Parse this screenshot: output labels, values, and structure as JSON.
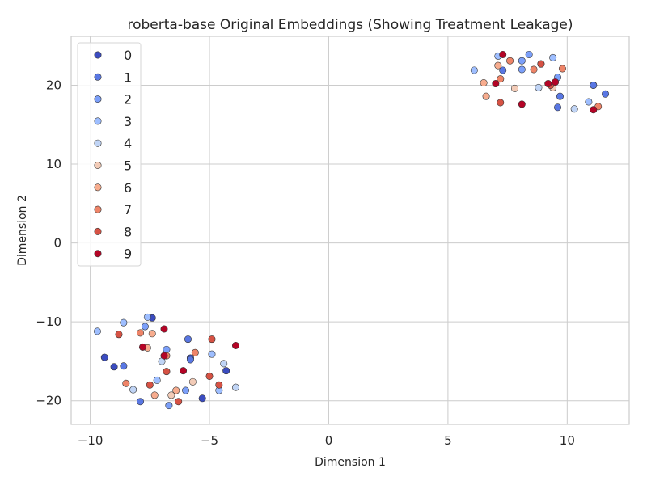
{
  "chart_data": {
    "type": "scatter",
    "title": "roberta-base Original Embeddings (Showing Treatment Leakage)",
    "xlabel": "Dimension 1",
    "ylabel": "Dimension 2",
    "xlim": [
      -10.8,
      12.6
    ],
    "ylim": [
      -23,
      26.2
    ],
    "xticks": [
      -10,
      -5,
      0,
      5,
      10
    ],
    "yticks": [
      -20,
      -10,
      0,
      10,
      20
    ],
    "xtick_labels": [
      "−10",
      "−5",
      "0",
      "5",
      "10"
    ],
    "ytick_labels": [
      "−20",
      "−10",
      "0",
      "10",
      "20"
    ],
    "grid": true,
    "legend_placement": "upper-left",
    "colors": [
      "#3b4cc0",
      "#5977e3",
      "#7b9ff9",
      "#9ebeff",
      "#c0d4f5",
      "#f2cbb7",
      "#f7ac8e",
      "#ee8468",
      "#d65244",
      "#b40426"
    ],
    "series": [
      {
        "name": "0",
        "points": [
          [
            -9.4,
            -14.5
          ],
          [
            -9.0,
            -15.7
          ],
          [
            -7.4,
            -9.5
          ],
          [
            -5.8,
            -14.6
          ],
          [
            -5.3,
            -19.7
          ],
          [
            -4.3,
            -16.2
          ],
          [
            11.1,
            20.0
          ]
        ]
      },
      {
        "name": "1",
        "points": [
          [
            -8.6,
            -15.6
          ],
          [
            -7.9,
            -20.1
          ],
          [
            -5.9,
            -12.2
          ],
          [
            -5.8,
            -14.8
          ],
          [
            9.7,
            18.6
          ],
          [
            11.1,
            20.0
          ],
          [
            11.6,
            18.9
          ],
          [
            7.3,
            21.9
          ],
          [
            9.6,
            17.2
          ]
        ]
      },
      {
        "name": "2",
        "points": [
          [
            -7.7,
            -10.6
          ],
          [
            -6.7,
            -20.6
          ],
          [
            -6.8,
            -13.5
          ],
          [
            -6.0,
            -18.7
          ],
          [
            8.1,
            23.1
          ],
          [
            8.1,
            22.0
          ],
          [
            8.4,
            23.9
          ],
          [
            9.6,
            21.0
          ]
        ]
      },
      {
        "name": "3",
        "points": [
          [
            -9.7,
            -11.2
          ],
          [
            -8.6,
            -10.1
          ],
          [
            -7.6,
            -9.4
          ],
          [
            -7.2,
            -17.4
          ],
          [
            -4.6,
            -18.7
          ],
          [
            -4.9,
            -14.1
          ],
          [
            6.1,
            21.9
          ],
          [
            7.1,
            23.7
          ],
          [
            9.4,
            23.5
          ],
          [
            10.9,
            17.9
          ]
        ]
      },
      {
        "name": "4",
        "points": [
          [
            -8.2,
            -18.6
          ],
          [
            -7.0,
            -15.0
          ],
          [
            -4.4,
            -15.3
          ],
          [
            -3.9,
            -18.3
          ],
          [
            10.3,
            17.0
          ],
          [
            8.8,
            19.7
          ]
        ]
      },
      {
        "name": "5",
        "points": [
          [
            -6.6,
            -19.3
          ],
          [
            -5.7,
            -17.6
          ],
          [
            9.4,
            19.7
          ],
          [
            7.8,
            19.6
          ]
        ]
      },
      {
        "name": "6",
        "points": [
          [
            -7.6,
            -13.3
          ],
          [
            -7.3,
            -19.3
          ],
          [
            -7.4,
            -11.5
          ],
          [
            -6.4,
            -18.7
          ],
          [
            6.6,
            18.6
          ],
          [
            6.5,
            20.3
          ],
          [
            7.1,
            22.5
          ]
        ]
      },
      {
        "name": "7",
        "points": [
          [
            -8.5,
            -17.8
          ],
          [
            -7.9,
            -11.4
          ],
          [
            -6.8,
            -14.3
          ],
          [
            -5.6,
            -13.9
          ],
          [
            8.9,
            22.7
          ],
          [
            9.8,
            22.1
          ],
          [
            11.3,
            17.3
          ],
          [
            7.6,
            23.1
          ],
          [
            8.6,
            22.0
          ],
          [
            7.2,
            20.8
          ]
        ]
      },
      {
        "name": "8",
        "points": [
          [
            -8.8,
            -11.6
          ],
          [
            -7.5,
            -18.0
          ],
          [
            -6.8,
            -16.3
          ],
          [
            -6.3,
            -20.1
          ],
          [
            -5.0,
            -16.9
          ],
          [
            -4.9,
            -12.2
          ],
          [
            -4.6,
            -18.0
          ],
          [
            7.2,
            17.8
          ],
          [
            9.3,
            20.0
          ],
          [
            8.9,
            22.7
          ]
        ]
      },
      {
        "name": "9",
        "points": [
          [
            -7.8,
            -13.2
          ],
          [
            -6.9,
            -10.9
          ],
          [
            -6.9,
            -14.3
          ],
          [
            -6.1,
            -16.2
          ],
          [
            -3.9,
            -13.0
          ],
          [
            7.3,
            23.9
          ],
          [
            7.0,
            20.2
          ],
          [
            8.1,
            17.6
          ],
          [
            9.2,
            20.2
          ],
          [
            9.5,
            20.4
          ],
          [
            11.1,
            16.9
          ]
        ]
      }
    ]
  }
}
